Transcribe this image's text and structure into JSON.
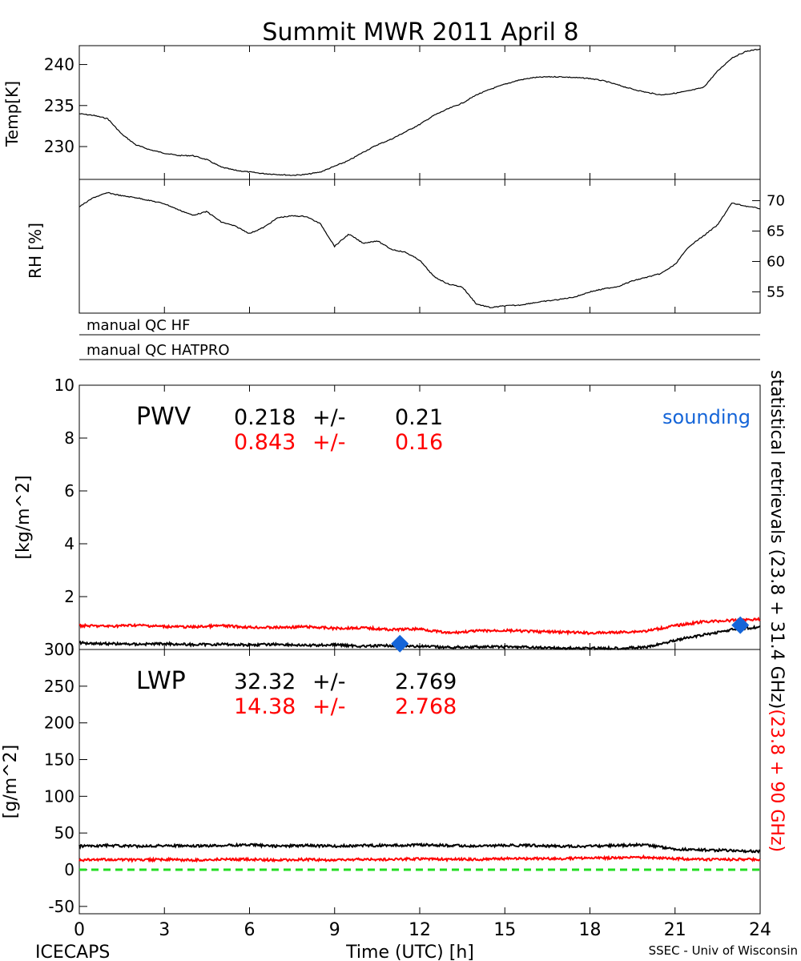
{
  "title": "Summit MWR 2011 April  8",
  "footer": {
    "left": "ICECAPS",
    "center": "Time (UTC) [h]",
    "right": "SSEC - Univ of Wisconsin"
  },
  "x_ticks": [
    "0",
    "3",
    "6",
    "9",
    "12",
    "15",
    "18",
    "21",
    "24"
  ],
  "qc_labels": [
    "manual QC HF",
    "manual QC HATPRO"
  ],
  "right_label": {
    "black_part": "statistical retrievals (23.8 + 31.4 GHz)",
    "red_part": "(23.8 + 90 GHz)"
  },
  "colors": {
    "black": "#000000",
    "red": "#ff0000",
    "blue": "#1565d8",
    "green": "#22dd22"
  },
  "chart_data": [
    {
      "type": "line",
      "panel": "temperature",
      "ylabel": "Temp[K]",
      "xlim": [
        0,
        24
      ],
      "ylim": [
        226,
        242.3
      ],
      "yticks": [
        "230",
        "235",
        "240"
      ],
      "series": [
        {
          "color": "black",
          "x": [
            0,
            0.5,
            1,
            1.5,
            2,
            2.5,
            3,
            3.5,
            4,
            4.5,
            5,
            5.5,
            6,
            6.5,
            7,
            7.5,
            8,
            8.5,
            9,
            9.5,
            10,
            10.5,
            11,
            11.5,
            12,
            12.5,
            13,
            13.5,
            14,
            14.5,
            15,
            15.5,
            16,
            16.5,
            17,
            17.5,
            18,
            18.5,
            19,
            19.5,
            20,
            20.5,
            21,
            21.5,
            22,
            22.5,
            23,
            23.5,
            24
          ],
          "y": [
            234,
            233.8,
            233.4,
            231.5,
            230.2,
            229.6,
            229.2,
            228.9,
            228.9,
            228.4,
            227.5,
            227.1,
            226.9,
            226.7,
            226.6,
            226.5,
            226.6,
            226.9,
            227.6,
            228.3,
            229.3,
            230.2,
            230.9,
            231.8,
            232.7,
            233.8,
            234.6,
            235.3,
            236.3,
            237,
            237.6,
            238.1,
            238.4,
            238.5,
            238.5,
            238.4,
            238.3,
            238,
            237.5,
            237,
            236.6,
            236.3,
            236.5,
            236.8,
            237.2,
            239.2,
            240.8,
            241.6,
            241.9
          ]
        }
      ]
    },
    {
      "type": "line",
      "panel": "relative-humidity",
      "ylabel": "RH [%]",
      "xlim": [
        0,
        24
      ],
      "ylim": [
        51.5,
        73.5
      ],
      "yticks": [
        "55",
        "60",
        "65",
        "70"
      ],
      "series": [
        {
          "color": "black",
          "x": [
            0,
            0.5,
            1,
            1.5,
            2,
            2.5,
            3,
            3.5,
            4,
            4.5,
            5,
            5.5,
            6,
            6.5,
            7,
            7.5,
            8,
            8.5,
            9,
            9.5,
            10,
            10.5,
            11,
            11.5,
            12,
            12.5,
            13,
            13.5,
            14,
            14.5,
            15,
            15.5,
            16,
            16.5,
            17,
            17.5,
            18,
            18.5,
            19,
            19.5,
            20,
            20.5,
            21,
            21.5,
            22,
            22.5,
            23,
            23.5,
            24
          ],
          "y": [
            69,
            70.5,
            71.3,
            70.8,
            70.5,
            70,
            69.5,
            68.5,
            67.6,
            68.2,
            66.5,
            65.8,
            64.6,
            65.6,
            67.2,
            67.5,
            67.4,
            66.2,
            62.5,
            64.5,
            63,
            63.4,
            62,
            61.5,
            60.2,
            57.5,
            56.3,
            55.8,
            53,
            52.4,
            52.7,
            52.8,
            53.2,
            53.5,
            53.8,
            54.2,
            55,
            55.5,
            55.9,
            56.8,
            57.4,
            58,
            59.5,
            62.5,
            64.2,
            66,
            69.6,
            69.1,
            68.7
          ]
        }
      ]
    },
    {
      "type": "line",
      "panel": "pwv",
      "title": "PWV",
      "ylabel": "[kg/m^2]",
      "xlim": [
        0,
        24
      ],
      "ylim": [
        0,
        10
      ],
      "yticks": [
        "0",
        "2",
        "4",
        "6",
        "8",
        "10"
      ],
      "stats": [
        {
          "color": "black",
          "mean": "0.218",
          "pm": "+/-",
          "std": "0.21"
        },
        {
          "color": "red",
          "mean": "0.843",
          "pm": "+/-",
          "std": "0.16"
        }
      ],
      "legend": "sounding",
      "series": [
        {
          "color": "red",
          "x": [
            0,
            1,
            2,
            3,
            4,
            5,
            6,
            7,
            8,
            9,
            10,
            11,
            12,
            13,
            14,
            15,
            16,
            17,
            18,
            19,
            20,
            21,
            22,
            23,
            24
          ],
          "y": [
            0.9,
            0.88,
            0.92,
            0.87,
            0.85,
            0.9,
            0.84,
            0.83,
            0.86,
            0.8,
            0.82,
            0.75,
            0.78,
            0.62,
            0.7,
            0.72,
            0.68,
            0.66,
            0.62,
            0.65,
            0.7,
            0.9,
            1.05,
            1.1,
            1.15
          ]
        },
        {
          "color": "black",
          "x": [
            0,
            1,
            2,
            3,
            4,
            5,
            6,
            7,
            8,
            9,
            10,
            11,
            12,
            13,
            14,
            15,
            16,
            17,
            18,
            19,
            20,
            21,
            22,
            23,
            24
          ],
          "y": [
            0.25,
            0.22,
            0.2,
            0.22,
            0.18,
            0.2,
            0.17,
            0.2,
            0.15,
            0.18,
            0.12,
            0.15,
            0.12,
            0.08,
            0.1,
            0.1,
            0.08,
            0.05,
            0.05,
            0.05,
            0.08,
            0.35,
            0.55,
            0.75,
            0.85
          ]
        },
        {
          "color": "blue",
          "marker": "diamond",
          "name": "sounding",
          "x": [
            11.3,
            23.3
          ],
          "y": [
            0.22,
            0.92
          ]
        }
      ]
    },
    {
      "type": "line",
      "panel": "lwp",
      "title": "LWP",
      "ylabel": "[g/m^2]",
      "xlim": [
        0,
        24
      ],
      "ylim": [
        -60,
        300
      ],
      "yticks": [
        "-50",
        "0",
        "50",
        "100",
        "150",
        "200",
        "250",
        "300"
      ],
      "stats": [
        {
          "color": "black",
          "mean": "32.32",
          "pm": "+/-",
          "std": "2.769"
        },
        {
          "color": "red",
          "mean": "14.38",
          "pm": "+/-",
          "std": "2.768"
        }
      ],
      "series": [
        {
          "color": "black",
          "x": [
            0,
            1,
            2,
            3,
            4,
            5,
            6,
            7,
            8,
            9,
            10,
            11,
            12,
            13,
            14,
            15,
            16,
            17,
            18,
            19,
            20,
            21,
            22,
            23,
            24
          ],
          "y": [
            32,
            33,
            32,
            33,
            32,
            33,
            34,
            32,
            33,
            32,
            33,
            33,
            34,
            33,
            32,
            33,
            33,
            32,
            32,
            33,
            34,
            28,
            27,
            26,
            25
          ]
        },
        {
          "color": "red",
          "x": [
            0,
            1,
            2,
            3,
            4,
            5,
            6,
            7,
            8,
            9,
            10,
            11,
            12,
            13,
            14,
            15,
            16,
            17,
            18,
            19,
            20,
            21,
            22,
            23,
            24
          ],
          "y": [
            13,
            14,
            13,
            14,
            13,
            14,
            14,
            13,
            14,
            13,
            14,
            14,
            15,
            14,
            14,
            15,
            15,
            15,
            16,
            16,
            17,
            15,
            14,
            14,
            14
          ]
        },
        {
          "color": "green",
          "style": "dashed",
          "x": [
            0,
            24
          ],
          "y": [
            0,
            0
          ]
        }
      ]
    }
  ]
}
